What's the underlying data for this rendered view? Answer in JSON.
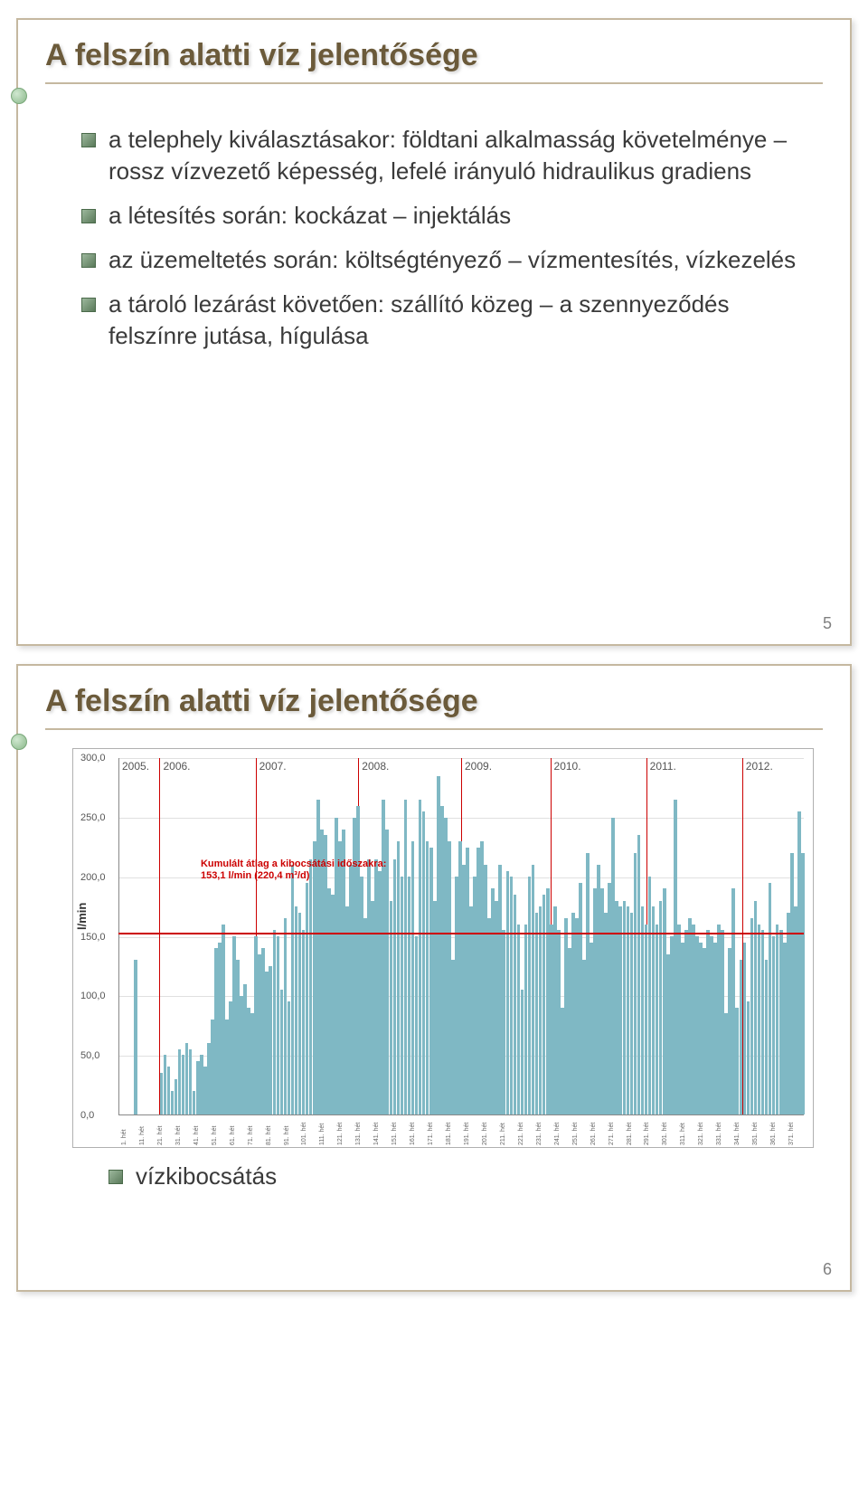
{
  "slide1": {
    "title_main": "A felszín alatti víz jelentősége",
    "bullets": [
      "a telephely kiválasztásakor: földtani alkalmasság követelménye – rossz vízvezető képesség, lefelé irányuló hidraulikus gradiens",
      "a létesítés során: kockázat – injektálás",
      "az üzemeltetés során: költségtényező – vízmentesítés, vízkezelés",
      "a tároló lezárást követően: szállító közeg – a szennyeződés felszínre jutása, hígulása"
    ],
    "page_num": "5"
  },
  "slide2": {
    "title_main": "A felszín alatti víz jelentősége",
    "bottom_bullet": "vízkibocsátás",
    "page_num": "6",
    "chart": {
      "ylabel": "l/min",
      "ylim": [
        0,
        300
      ],
      "ytick_step": 50,
      "yticks": [
        "0,0",
        "50,0",
        "100,0",
        "150,0",
        "200,0",
        "250,0",
        "300,0"
      ],
      "grid_color": "#e0e0e0",
      "bar_color": "#7fb8c4",
      "hline_value": 153.1,
      "hline_color": "#cc0000",
      "annotation_line1": "Kumulált átlag a kibocsátási időszakra:",
      "annotation_line2": "153,1 l/min (220,4 m³/d)",
      "annotation_left_pct": 12,
      "annotation_top_pct": 28,
      "years": [
        "2005.",
        "2006.",
        "2007.",
        "2008.",
        "2009.",
        "2010.",
        "2011.",
        "2012."
      ],
      "year_positions_pct": [
        0,
        6,
        20,
        35,
        50,
        63,
        77,
        91
      ],
      "xticks": [
        "1. hét",
        "11. hét",
        "21. hét",
        "31. hét",
        "41. hét",
        "51. hét",
        "61. hét",
        "71. hét",
        "81. hét",
        "91. hét",
        "101. hét",
        "111. hét",
        "121. hét",
        "131. hét",
        "141. hét",
        "151. hét",
        "161. hét",
        "171. hét",
        "181. hét",
        "191. hét",
        "201. hét",
        "211. hét",
        "221. hét",
        "231. hét",
        "241. hét",
        "251. hét",
        "261. hét",
        "271. hét",
        "281. hét",
        "291. hét",
        "301. hét",
        "311. hét",
        "321. hét",
        "331. hét",
        "341. hét",
        "351. hét",
        "361. hét",
        "371. hét"
      ],
      "values": [
        0,
        0,
        0,
        0,
        130,
        0,
        0,
        0,
        0,
        0,
        0,
        35,
        50,
        40,
        20,
        30,
        55,
        50,
        60,
        55,
        20,
        45,
        50,
        40,
        60,
        80,
        140,
        145,
        160,
        80,
        95,
        150,
        130,
        100,
        110,
        90,
        85,
        150,
        135,
        140,
        120,
        125,
        155,
        150,
        105,
        165,
        95,
        210,
        175,
        170,
        155,
        195,
        215,
        230,
        265,
        240,
        235,
        190,
        185,
        250,
        230,
        240,
        175,
        210,
        250,
        260,
        200,
        165,
        215,
        180,
        215,
        205,
        265,
        240,
        180,
        215,
        230,
        200,
        265,
        200,
        230,
        150,
        265,
        255,
        230,
        225,
        180,
        285,
        260,
        250,
        230,
        130,
        200,
        230,
        210,
        225,
        175,
        200,
        225,
        230,
        210,
        165,
        190,
        180,
        210,
        155,
        205,
        200,
        185,
        160,
        105,
        160,
        200,
        210,
        170,
        175,
        185,
        190,
        160,
        175,
        155,
        90,
        165,
        140,
        170,
        165,
        195,
        130,
        220,
        145,
        190,
        210,
        190,
        170,
        195,
        250,
        180,
        175,
        180,
        175,
        170,
        220,
        235,
        175,
        160,
        200,
        175,
        160,
        180,
        190,
        135,
        150,
        265,
        160,
        145,
        155,
        165,
        160,
        150,
        145,
        140,
        155,
        150,
        145,
        160,
        155,
        85,
        140,
        190,
        90,
        130,
        145,
        95,
        165,
        180,
        160,
        155,
        130,
        195,
        150,
        160,
        155,
        145,
        170,
        220,
        175,
        255,
        220
      ]
    }
  },
  "colors": {
    "title": "#6b5a3a",
    "border": "#c5b8a0",
    "bullet_square": "#5a7a5a",
    "page_num": "#808080"
  }
}
